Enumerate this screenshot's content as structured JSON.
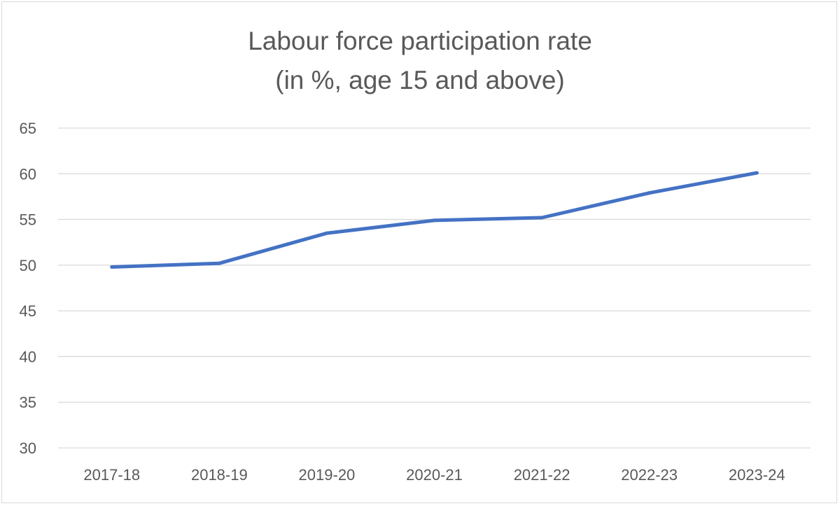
{
  "chart_data": {
    "type": "line",
    "title": "Labour force participation rate",
    "subtitle": "(in %, age 15 and above)",
    "categories": [
      "2017-18",
      "2018-19",
      "2019-20",
      "2020-21",
      "2021-22",
      "2022-23",
      "2023-24"
    ],
    "series": [
      {
        "values": [
          49.8,
          50.2,
          53.5,
          54.9,
          55.2,
          57.9,
          60.1
        ],
        "color": "#4472c4"
      }
    ],
    "ylim": [
      30,
      65
    ],
    "yticks": [
      30,
      35,
      40,
      45,
      50,
      55,
      60,
      65
    ],
    "xlabel": "",
    "ylabel": "",
    "grid": true,
    "legend": "none"
  }
}
